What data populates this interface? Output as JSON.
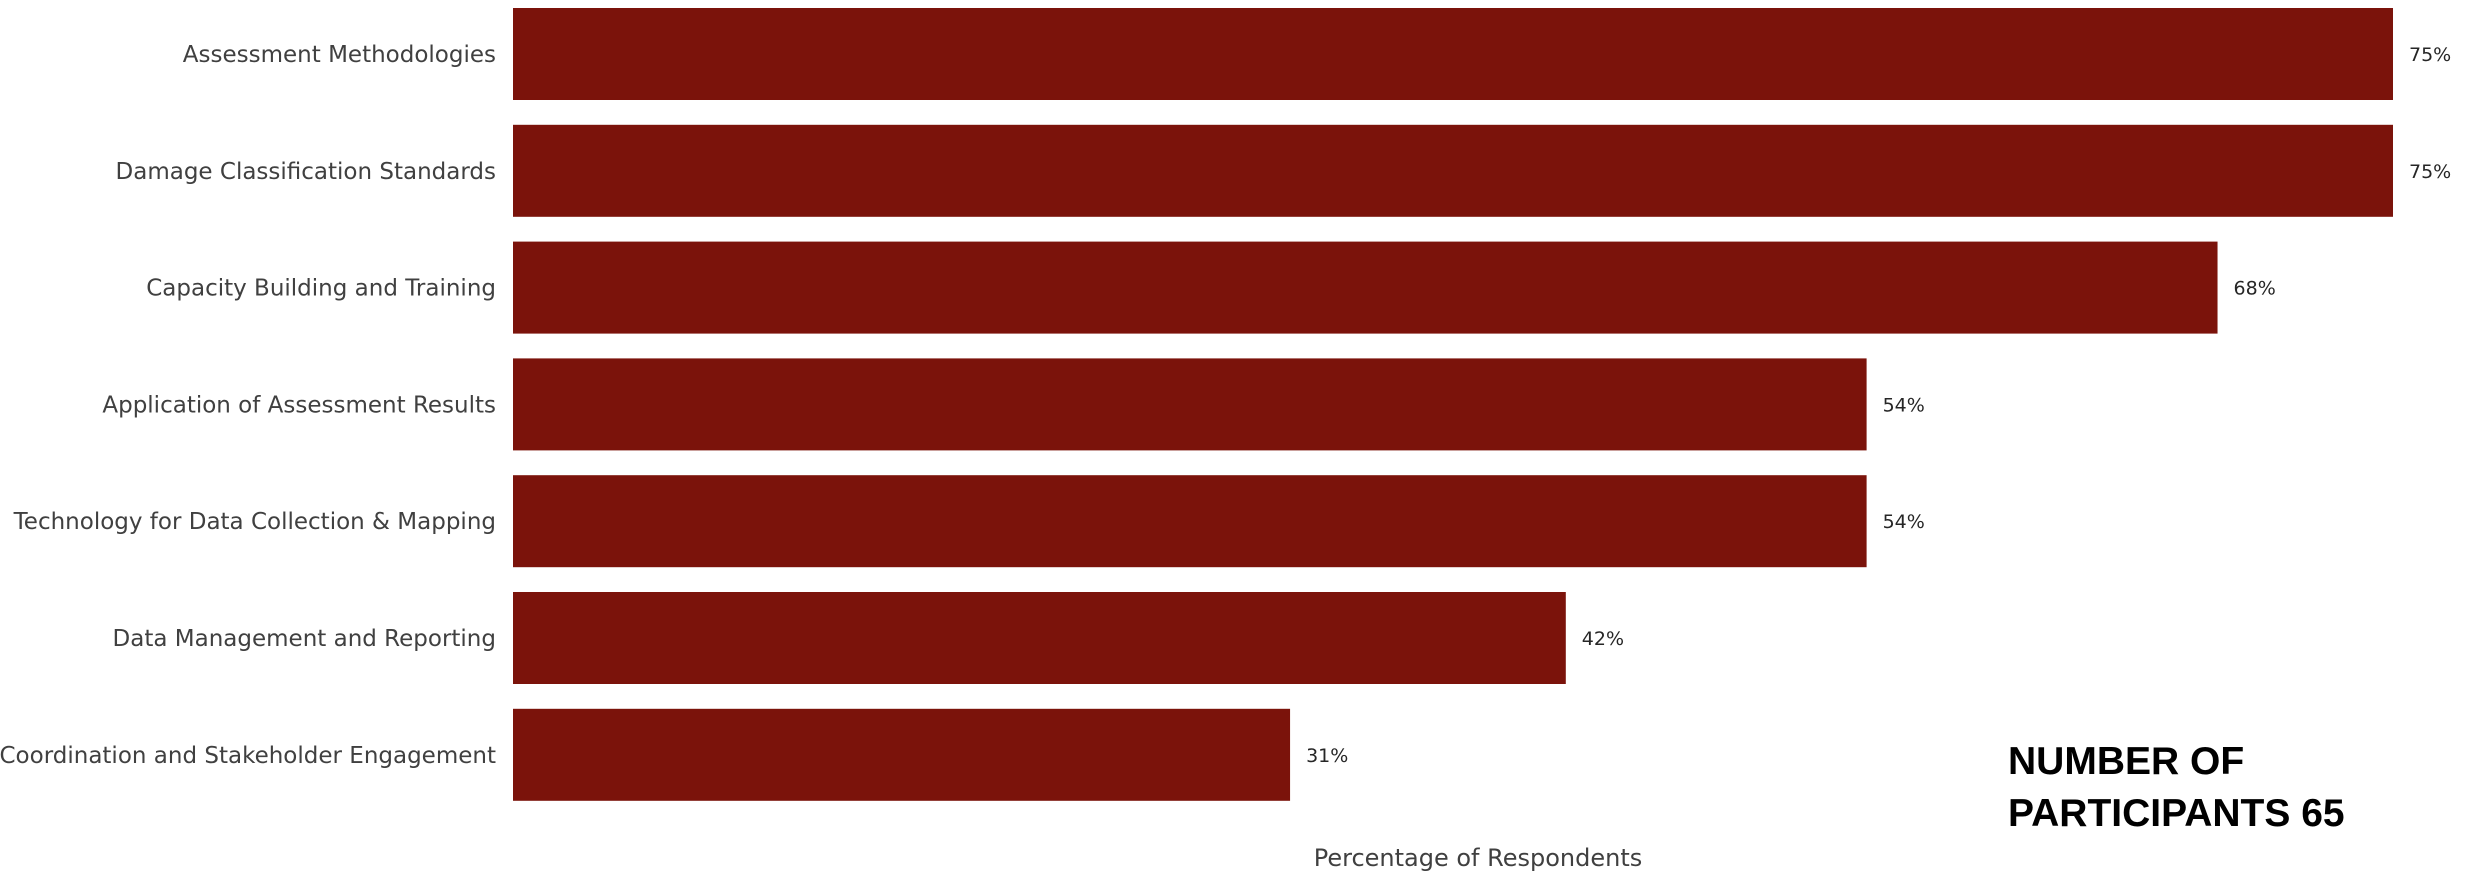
{
  "chart_data": {
    "type": "bar",
    "orientation": "horizontal",
    "categories": [
      "Assessment Methodologies",
      "Damage Classification Standards",
      "Capacity Building and Training",
      "Application of Assessment Results",
      "Technology for Data Collection & Mapping",
      "Data Management and Reporting",
      "Coordination and Stakeholder Engagement"
    ],
    "values": [
      75,
      75,
      68,
      54,
      54,
      42,
      31
    ],
    "value_labels": [
      "75%",
      "75%",
      "68%",
      "54%",
      "54%",
      "42%",
      "31%"
    ],
    "xlabel": "Percentage of Respondents",
    "ylabel": "",
    "title": "",
    "bar_color": "#7b130b",
    "grid": false
  },
  "annotation": {
    "line1": "NUMBER OF",
    "line2": "PARTICIPANTS 65"
  }
}
